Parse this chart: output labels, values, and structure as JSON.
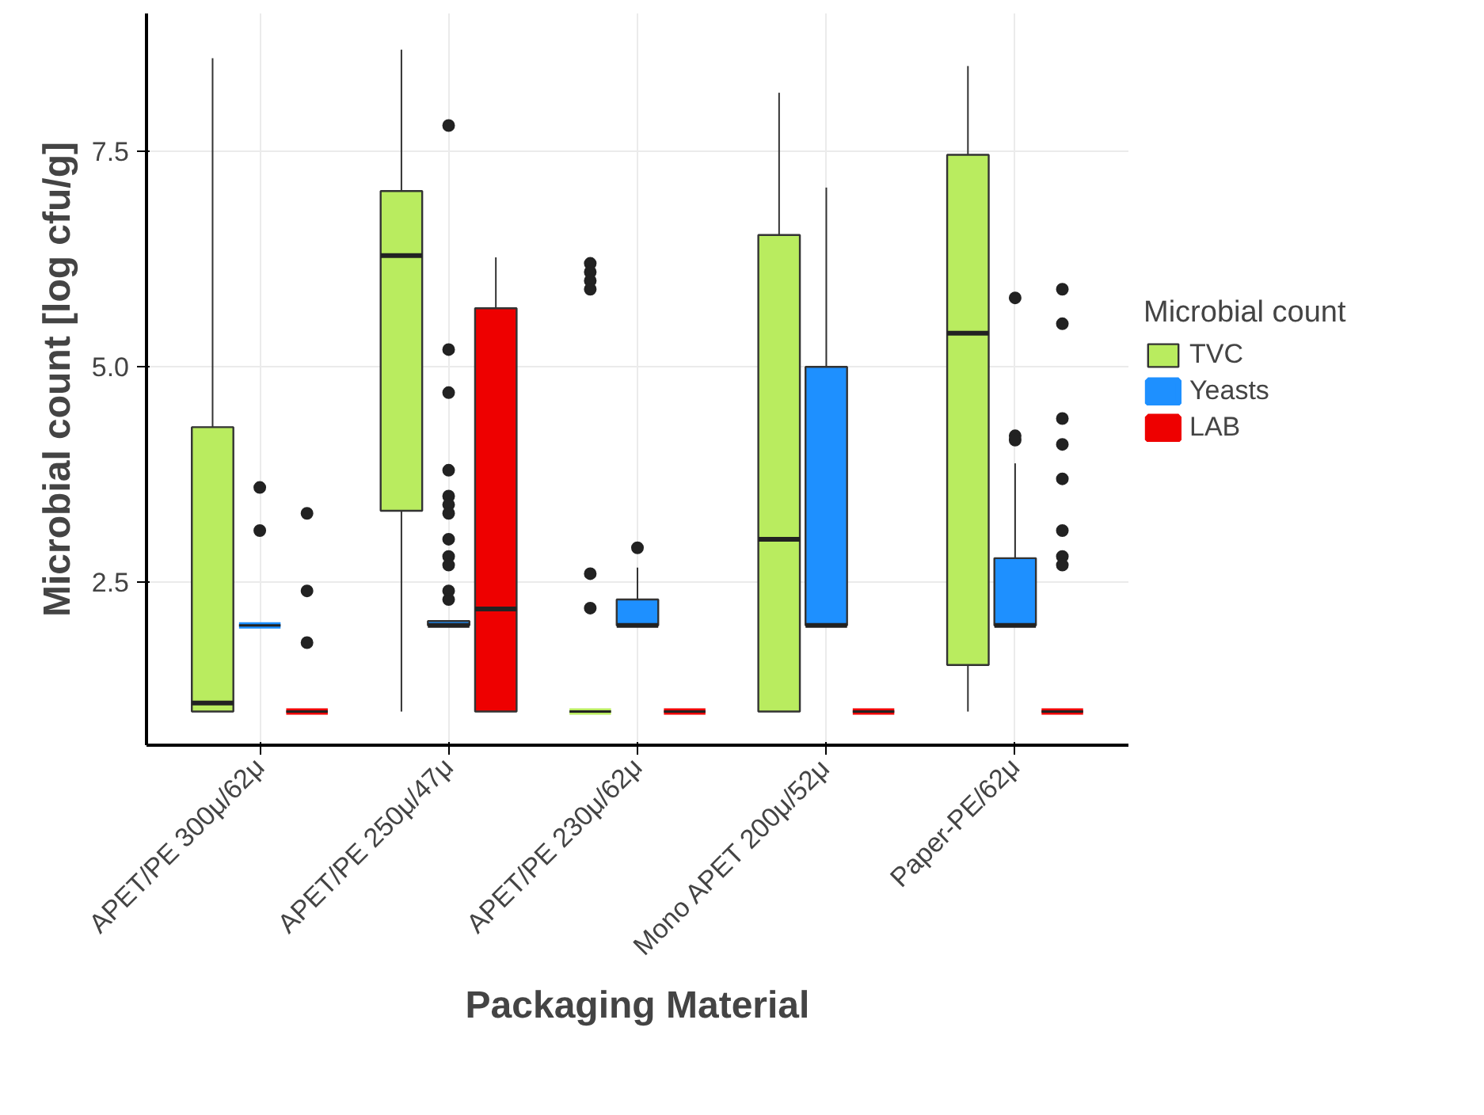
{
  "chart_data": {
    "type": "box",
    "xlabel": "Packaging Material",
    "ylabel": "Microbial count [log cfu/g]",
    "legend_title": "Microbial count",
    "categories": [
      "APET/PE 300μ/62μ",
      "APET/PE 250μ/47μ",
      "APET/PE 230μ/62μ",
      "Mono APET 200μ/52μ",
      "Paper-PE/62μ"
    ],
    "ylim": [
      0.61,
      9.1
    ],
    "yticks": [
      {
        "value": 2.5,
        "label": "2.5"
      },
      {
        "value": 5.0,
        "label": "5.0"
      },
      {
        "value": 7.5,
        "label": "7.5"
      }
    ],
    "grid": true,
    "legend": "right",
    "series": [
      {
        "name": "TVC",
        "color": "#b9ec5f",
        "boxes": [
          {
            "low": 1.0,
            "q1": 1.0,
            "median": 1.1,
            "q3": 4.3,
            "high": 8.58
          },
          {
            "low": 1.0,
            "q1": 3.33,
            "median": 6.29,
            "q3": 7.04,
            "high": 8.68
          },
          {
            "low": 1.0,
            "q1": 1.0,
            "median": 1.0,
            "q3": 1.0,
            "high": 1.0,
            "outliers": [
              6.2,
              6.1,
              6.0,
              5.9,
              2.6,
              2.2
            ]
          },
          {
            "low": 1.0,
            "q1": 1.0,
            "median": 3.0,
            "q3": 6.53,
            "high": 8.18
          },
          {
            "low": 1.0,
            "q1": 1.54,
            "median": 5.39,
            "q3": 7.46,
            "high": 8.49
          }
        ]
      },
      {
        "name": "Yeasts",
        "color": "#1e90ff",
        "boxes": [
          {
            "low": 2.0,
            "q1": 2.0,
            "median": 2.0,
            "q3": 2.0,
            "high": 2.0,
            "outliers": [
              3.6,
              3.1
            ]
          },
          {
            "low": 2.0,
            "q1": 2.0,
            "median": 2.0,
            "q3": 2.05,
            "high": 2.05,
            "outliers": [
              7.8,
              5.2,
              4.7,
              3.8,
              3.5,
              3.4,
              3.3,
              3.0,
              2.8,
              2.7,
              2.4,
              2.3
            ]
          },
          {
            "low": 2.0,
            "q1": 2.0,
            "median": 2.0,
            "q3": 2.3,
            "high": 2.67,
            "outliers": [
              2.9
            ]
          },
          {
            "low": 2.0,
            "q1": 2.0,
            "median": 2.0,
            "q3": 5.0,
            "high": 7.08
          },
          {
            "low": 2.0,
            "q1": 2.0,
            "median": 2.0,
            "q3": 2.78,
            "high": 3.88,
            "outliers": [
              5.8,
              4.2,
              4.15
            ]
          }
        ]
      },
      {
        "name": "LAB",
        "color": "#ee0000",
        "boxes": [
          {
            "low": 1.0,
            "q1": 1.0,
            "median": 1.0,
            "q3": 1.0,
            "high": 1.0,
            "outliers": [
              3.3,
              2.4,
              1.8
            ]
          },
          {
            "low": 1.0,
            "q1": 1.0,
            "median": 2.19,
            "q3": 5.68,
            "high": 6.27
          },
          {
            "low": 1.0,
            "q1": 1.0,
            "median": 1.0,
            "q3": 1.0,
            "high": 1.0
          },
          {
            "low": 1.0,
            "q1": 1.0,
            "median": 1.0,
            "q3": 1.0,
            "high": 1.0
          },
          {
            "low": 1.0,
            "q1": 1.0,
            "median": 1.0,
            "q3": 1.0,
            "high": 1.0,
            "outliers": [
              5.9,
              5.5,
              4.4,
              4.1,
              3.7,
              3.1,
              2.8,
              2.7
            ]
          }
        ]
      }
    ]
  }
}
